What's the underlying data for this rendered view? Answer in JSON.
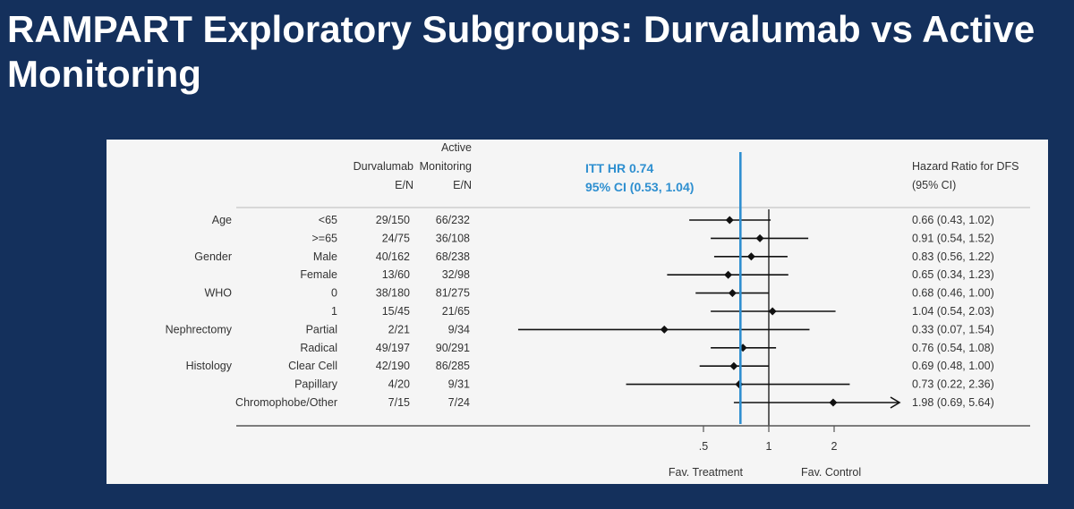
{
  "slide": {
    "title": "RAMPART Exploratory Subgroups: Durvalumab vs Active Monitoring"
  },
  "colors": {
    "background": "#14305c",
    "panel": "#f5f5f5",
    "itt_line": "#2e8fd0",
    "marks": "#111111"
  },
  "chart_data": {
    "type": "forest",
    "headers": {
      "durvalumab": [
        "Durvalumab",
        "E/N"
      ],
      "active_monitoring": [
        "Active",
        "Monitoring",
        "E/N"
      ],
      "hr": [
        "Hazard Ratio for DFS",
        "(95% CI)"
      ]
    },
    "itt": {
      "label": "ITT HR 0.74",
      "ci_label": "95% CI (0.53, 1.04)",
      "hr": 0.74
    },
    "axis": {
      "scale": "log",
      "range": [
        0.25,
        2.5
      ],
      "reference": 1,
      "ticks": [
        {
          "value": 0.5,
          "label": ".5"
        },
        {
          "value": 1,
          "label": "1"
        },
        {
          "value": 2,
          "label": "2"
        }
      ],
      "favors_left": "Fav. Treatment",
      "favors_right": "Fav. Control"
    },
    "rows": [
      {
        "group": "Age",
        "sub": "<65",
        "durva": "29/150",
        "am": "66/232",
        "hr": 0.66,
        "lo": 0.43,
        "hi": 1.02,
        "hr_text": "0.66 (0.43, 1.02)"
      },
      {
        "group": "",
        "sub": ">=65",
        "durva": "24/75",
        "am": "36/108",
        "hr": 0.91,
        "lo": 0.54,
        "hi": 1.52,
        "hr_text": "0.91 (0.54, 1.52)"
      },
      {
        "group": "Gender",
        "sub": "Male",
        "durva": "40/162",
        "am": "68/238",
        "hr": 0.83,
        "lo": 0.56,
        "hi": 1.22,
        "hr_text": "0.83 (0.56, 1.22)"
      },
      {
        "group": "",
        "sub": "Female",
        "durva": "13/60",
        "am": "32/98",
        "hr": 0.65,
        "lo": 0.34,
        "hi": 1.23,
        "hr_text": "0.65 (0.34, 1.23)"
      },
      {
        "group": "WHO",
        "sub": "0",
        "durva": "38/180",
        "am": "81/275",
        "hr": 0.68,
        "lo": 0.46,
        "hi": 1.0,
        "hr_text": "0.68 (0.46, 1.00)"
      },
      {
        "group": "",
        "sub": "1",
        "durva": "15/45",
        "am": "21/65",
        "hr": 1.04,
        "lo": 0.54,
        "hi": 2.03,
        "hr_text": "1.04 (0.54, 2.03)"
      },
      {
        "group": "Nephrectomy",
        "sub": "Partial",
        "durva": "2/21",
        "am": "9/34",
        "hr": 0.33,
        "lo": 0.07,
        "hi": 1.54,
        "hr_text": "0.33 (0.07, 1.54)"
      },
      {
        "group": "",
        "sub": "Radical",
        "durva": "49/197",
        "am": "90/291",
        "hr": 0.76,
        "lo": 0.54,
        "hi": 1.08,
        "hr_text": "0.76 (0.54, 1.08)"
      },
      {
        "group": "Histology",
        "sub": "Clear Cell",
        "durva": "42/190",
        "am": "86/285",
        "hr": 0.69,
        "lo": 0.48,
        "hi": 1.0,
        "hr_text": "0.69 (0.48, 1.00)"
      },
      {
        "group": "",
        "sub": "Papillary",
        "durva": "4/20",
        "am": "9/31",
        "hr": 0.73,
        "lo": 0.22,
        "hi": 2.36,
        "hr_text": "0.73 (0.22, 2.36)"
      },
      {
        "group": "",
        "sub": "Chromophobe/Other",
        "durva": "7/15",
        "am": "7/24",
        "hr": 1.98,
        "lo": 0.69,
        "hi": 5.64,
        "hr_text": "1.98 (0.69, 5.64)"
      }
    ]
  }
}
